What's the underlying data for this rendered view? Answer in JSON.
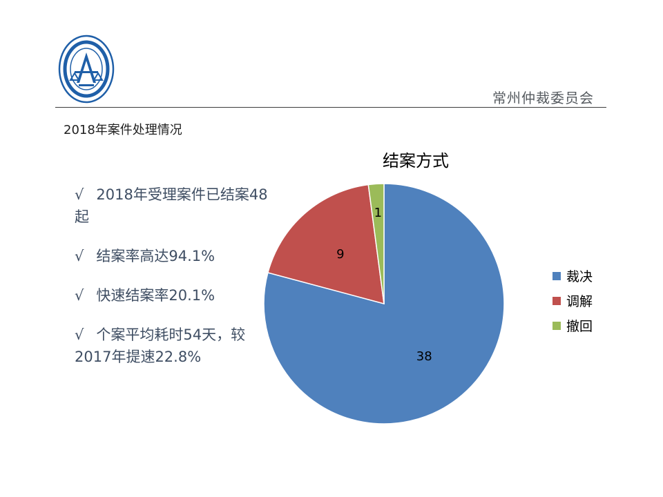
{
  "org_name": "常州仲裁委员会",
  "subtitle": "2018年案件处理情况",
  "bullets": [
    "2018年受理案件已结案48起",
    "结案率高达94.1%",
    "快速结案率20.1%",
    "个案平均耗时54天，较2017年提速22.8%"
  ],
  "check_symbol": "√",
  "colors": {
    "logo_blue": "#1f5fa8",
    "text_dark": "#3f4e63"
  },
  "chart_data": {
    "type": "pie",
    "title": "结案方式",
    "categories": [
      "裁决",
      "调解",
      "撤回"
    ],
    "values": [
      38,
      9,
      1
    ],
    "colors": [
      "#4f81bd",
      "#c0504d",
      "#9bbb59"
    ],
    "show_data_labels": true,
    "legend_position": "right"
  }
}
